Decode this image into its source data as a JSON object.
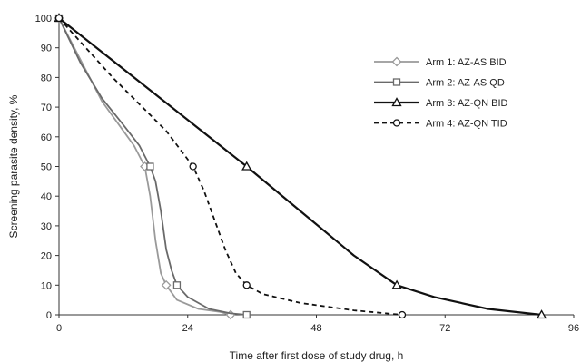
{
  "chart_data": {
    "type": "line",
    "xlabel": "Time after first dose of study drug, h",
    "ylabel": "Screening parasite density, %",
    "xlim": [
      0,
      96
    ],
    "ylim": [
      0,
      100
    ],
    "xticks": [
      0,
      24,
      48,
      72,
      96
    ],
    "yticks": [
      0,
      10,
      20,
      30,
      40,
      50,
      60,
      70,
      80,
      90,
      100
    ],
    "grid": false,
    "legend_position": "top-right",
    "series": [
      {
        "name": "Arm 1: AZ-AS BID",
        "color": "#9a9a9a",
        "line_style": "solid",
        "marker": "diamond",
        "points": [
          [
            0,
            100
          ],
          [
            4,
            86
          ],
          [
            8,
            72
          ],
          [
            12,
            62
          ],
          [
            14,
            57
          ],
          [
            16,
            50
          ],
          [
            17,
            40
          ],
          [
            18,
            25
          ],
          [
            19,
            14
          ],
          [
            20,
            10
          ],
          [
            22,
            5
          ],
          [
            26,
            2
          ],
          [
            30,
            1
          ],
          [
            32,
            0
          ]
        ],
        "marked": [
          [
            0,
            100
          ],
          [
            16,
            50
          ],
          [
            20,
            10
          ],
          [
            32,
            0
          ]
        ]
      },
      {
        "name": "Arm 2: AZ-AS QD",
        "color": "#6a6a6a",
        "line_style": "solid",
        "marker": "square",
        "points": [
          [
            0,
            100
          ],
          [
            4,
            85
          ],
          [
            8,
            73
          ],
          [
            12,
            64
          ],
          [
            15,
            57
          ],
          [
            17,
            50
          ],
          [
            18,
            45
          ],
          [
            19,
            35
          ],
          [
            20,
            22
          ],
          [
            21,
            15
          ],
          [
            22,
            10
          ],
          [
            24,
            6
          ],
          [
            28,
            2
          ],
          [
            32,
            0.5
          ],
          [
            35,
            0
          ]
        ],
        "marked": [
          [
            0,
            100
          ],
          [
            17,
            50
          ],
          [
            22,
            10
          ],
          [
            35,
            0
          ]
        ]
      },
      {
        "name": "Arm 3: AZ-QN BID",
        "color": "#111111",
        "line_style": "solid",
        "marker": "triangle",
        "points": [
          [
            0,
            100
          ],
          [
            35,
            50
          ],
          [
            45,
            35
          ],
          [
            55,
            20
          ],
          [
            63,
            10
          ],
          [
            70,
            6
          ],
          [
            80,
            2
          ],
          [
            90,
            0
          ]
        ],
        "marked": [
          [
            0,
            100
          ],
          [
            35,
            50
          ],
          [
            63,
            10
          ],
          [
            90,
            0
          ]
        ]
      },
      {
        "name": "Arm 4: AZ-QN TID",
        "color": "#111111",
        "line_style": "dashed",
        "marker": "circle",
        "points": [
          [
            0,
            100
          ],
          [
            10,
            80
          ],
          [
            20,
            62
          ],
          [
            25,
            50
          ],
          [
            27,
            42
          ],
          [
            29,
            32
          ],
          [
            31,
            22
          ],
          [
            33,
            14
          ],
          [
            35,
            10
          ],
          [
            38,
            7
          ],
          [
            45,
            4
          ],
          [
            55,
            1.5
          ],
          [
            64,
            0
          ]
        ],
        "marked": [
          [
            0,
            100
          ],
          [
            25,
            50
          ],
          [
            35,
            10
          ],
          [
            64,
            0
          ]
        ]
      }
    ]
  }
}
